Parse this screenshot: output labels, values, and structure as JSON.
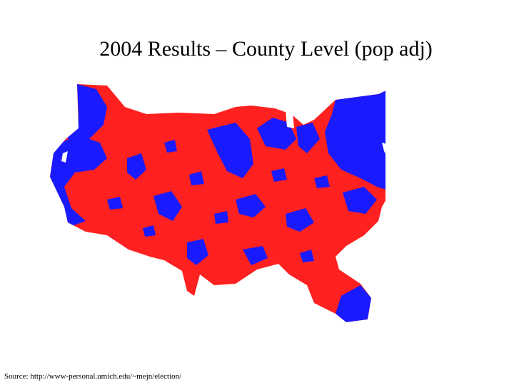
{
  "slide": {
    "title": "2004 Results – County Level (pop adj)",
    "source": "Source: http://www-personal.umich.edu/~mejn/election/"
  },
  "map": {
    "type": "cartogram",
    "colors": {
      "republican": "#ff2020",
      "democrat": "#1a1aff",
      "background": "#ffffff"
    }
  }
}
